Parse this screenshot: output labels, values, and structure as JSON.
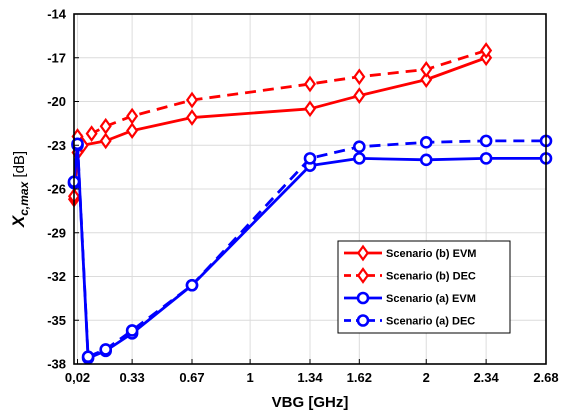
{
  "chart_data": {
    "type": "line",
    "xlabel": "VBG [GHz]",
    "ylabel_main": "X",
    "ylabel_sub": "c,max",
    "ylabel_unit": " [dB]",
    "xlim": [
      0,
      2.68
    ],
    "ylim": [
      -38,
      -14
    ],
    "xticks": [
      {
        "value": 0.02,
        "label": "0,02"
      },
      {
        "value": 0.33,
        "label": "0.33"
      },
      {
        "value": 0.67,
        "label": "0.67"
      },
      {
        "value": 1.0,
        "label": "1"
      },
      {
        "value": 1.34,
        "label": "1.34"
      },
      {
        "value": 1.62,
        "label": "1.62"
      },
      {
        "value": 2.0,
        "label": "2"
      },
      {
        "value": 2.34,
        "label": "2.34"
      },
      {
        "value": 2.68,
        "label": "2.68"
      }
    ],
    "yticks": [
      {
        "value": -14,
        "label": "-14"
      },
      {
        "value": -17,
        "label": "-17"
      },
      {
        "value": -20,
        "label": "-20"
      },
      {
        "value": -23,
        "label": "-23"
      },
      {
        "value": -26,
        "label": "-26"
      },
      {
        "value": -29,
        "label": "-29"
      },
      {
        "value": -32,
        "label": "-32"
      },
      {
        "value": -35,
        "label": "-35"
      },
      {
        "value": -38,
        "label": "-38"
      }
    ],
    "grid": true,
    "legend_position": "bottom-right",
    "series": [
      {
        "name": "Scenario (b) EVM",
        "color": "#ff0000",
        "dash": "solid",
        "marker": "diamond",
        "x": [
          0.0,
          0.02,
          0.05,
          0.18,
          0.33,
          0.67,
          1.34,
          1.62,
          2.0,
          2.34
        ],
        "y": [
          -26.7,
          -23.5,
          -23.0,
          -22.7,
          -22.0,
          -21.1,
          -20.5,
          -19.6,
          -18.5,
          -17.0
        ]
      },
      {
        "name": "Scenario (b) DEC",
        "color": "#ff0000",
        "dash": "dashed",
        "marker": "diamond",
        "x": [
          0.0,
          0.02,
          0.1,
          0.18,
          0.33,
          0.67,
          1.34,
          1.62,
          2.0,
          2.34
        ],
        "y": [
          -26.5,
          -22.4,
          -22.2,
          -21.7,
          -21.0,
          -19.9,
          -18.8,
          -18.3,
          -17.8,
          -16.5
        ]
      },
      {
        "name": "Scenario (a) EVM",
        "color": "#0000ff",
        "dash": "solid",
        "marker": "circle",
        "x": [
          0.0,
          0.02,
          0.08,
          0.18,
          0.33,
          0.67,
          1.34,
          1.62,
          2.0,
          2.34,
          2.68
        ],
        "y": [
          -25.6,
          -23.0,
          -37.6,
          -37.1,
          -35.9,
          -32.6,
          -24.4,
          -23.9,
          -24.0,
          -23.9,
          -23.9
        ]
      },
      {
        "name": "Scenario (a) DEC",
        "color": "#0000ff",
        "dash": "dashed",
        "marker": "circle",
        "x": [
          0.0,
          0.02,
          0.08,
          0.18,
          0.33,
          0.67,
          1.34,
          1.62,
          2.0,
          2.34,
          2.68
        ],
        "y": [
          -25.5,
          -22.9,
          -37.5,
          -37.0,
          -35.7,
          -32.6,
          -23.9,
          -23.1,
          -22.8,
          -22.7,
          -22.7
        ]
      }
    ]
  }
}
